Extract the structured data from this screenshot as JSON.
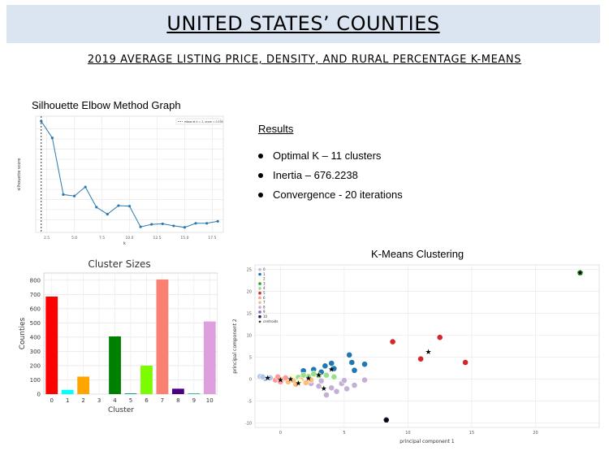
{
  "header": {
    "title": "UNITED STATES’ COUNTIES",
    "subtitle": "2019 AVERAGE LISTING PRICE, DENSITY, AND RURAL PERCENTAGE K-MEANS"
  },
  "results": {
    "heading": "Results",
    "items": [
      "Optimal K – 11 clusters",
      "Inertia –  676.2238",
      "Convergence - 20  iterations"
    ]
  },
  "panels": {
    "silhouette_title": "Silhouette Elbow Method Graph",
    "kmeans_title": "K-Means Clustering"
  },
  "chart_data": [
    {
      "type": "line",
      "title": "",
      "xlabel": "k",
      "ylabel": "silhouette score",
      "legend": "top-right",
      "legend_text": "elbow at k = 2, score = 0.535",
      "elbow_k": 2,
      "x": [
        2,
        3,
        4,
        5,
        6,
        7,
        8,
        9,
        10,
        11,
        12,
        13,
        14,
        15,
        16,
        17,
        18
      ],
      "values": [
        0.535,
        0.502,
        0.39,
        0.387,
        0.405,
        0.365,
        0.351,
        0.368,
        0.367,
        0.326,
        0.331,
        0.332,
        0.328,
        0.325,
        0.333,
        0.333,
        0.337
      ],
      "xticks": [
        "2.5",
        "5.0",
        "7.5",
        "10.0",
        "12.5",
        "15.0",
        "17.5"
      ],
      "grid": true,
      "color": "#2a7ab0"
    },
    {
      "type": "bar",
      "title": "Cluster Sizes",
      "xlabel": "Cluster",
      "ylabel": "Counties",
      "ylim": [
        0,
        850
      ],
      "yticks": [
        0,
        100,
        200,
        300,
        400,
        500,
        600,
        700,
        800
      ],
      "categories": [
        "0",
        "1",
        "2",
        "3",
        "4",
        "5",
        "6",
        "7",
        "8",
        "9",
        "10"
      ],
      "values": [
        685,
        30,
        123,
        0,
        405,
        5,
        200,
        805,
        38,
        5,
        510
      ],
      "colors": [
        "#ff0000",
        "#00ffff",
        "#ffa500",
        "#ffd700",
        "#008000",
        "#008b8b",
        "#7cfc00",
        "#fa8072",
        "#4b0082",
        "#20b2aa",
        "#dda0dd"
      ],
      "grid": true
    },
    {
      "type": "scatter",
      "title": "",
      "xlabel": "principal component 1",
      "ylabel": "principal component 2",
      "xlim": [
        -2,
        25
      ],
      "ylim": [
        -11,
        26
      ],
      "xticks": [
        "0",
        "5",
        "10",
        "15",
        "20"
      ],
      "yticks": [
        "-10",
        "-5",
        "0",
        "5",
        "10",
        "15",
        "20",
        "25"
      ],
      "legend": "top-left",
      "legend_entries": [
        "0",
        "1",
        "2",
        "3",
        "4",
        "5",
        "6",
        "7",
        "8",
        "9",
        "10",
        "centroids"
      ],
      "colors": [
        "#aec7e8",
        "#1f77b4",
        "#ffffcc",
        "#2ca02c",
        "#98df8a",
        "#d62728",
        "#ff9896",
        "#ffbb78",
        "#c5b0d5",
        "#9467bd",
        "#2e1a47"
      ],
      "points": [
        {
          "c": 1,
          "x": 5.4,
          "y": 5.5
        },
        {
          "c": 1,
          "x": 5.6,
          "y": 3.8
        },
        {
          "c": 1,
          "x": 6.6,
          "y": 3.4
        },
        {
          "c": 1,
          "x": 5.8,
          "y": 2.0
        },
        {
          "c": 1,
          "x": 4.2,
          "y": 2.4
        },
        {
          "c": 1,
          "x": 3.5,
          "y": 3.0
        },
        {
          "c": 1,
          "x": 3.2,
          "y": 1.6
        },
        {
          "c": 1,
          "x": 2.6,
          "y": 2.2
        },
        {
          "c": 1,
          "x": 1.8,
          "y": 1.9
        },
        {
          "c": 1,
          "x": 4.0,
          "y": 3.6
        },
        {
          "c": 5,
          "x": 8.8,
          "y": 8.5
        },
        {
          "c": 5,
          "x": 12.5,
          "y": 9.5
        },
        {
          "c": 5,
          "x": 11.0,
          "y": 4.6
        },
        {
          "c": 5,
          "x": 14.5,
          "y": 3.8
        },
        {
          "c": 3,
          "x": 23.5,
          "y": 24.2
        },
        {
          "c": 10,
          "x": 8.3,
          "y": -9.3
        },
        {
          "c": 8,
          "x": 6.6,
          "y": -0.2
        },
        {
          "c": 8,
          "x": 5.8,
          "y": -1.4
        },
        {
          "c": 8,
          "x": 4.8,
          "y": -1.0
        },
        {
          "c": 8,
          "x": 5.2,
          "y": -2.2
        },
        {
          "c": 8,
          "x": 4.0,
          "y": -2.0
        },
        {
          "c": 8,
          "x": 3.6,
          "y": -3.6
        },
        {
          "c": 8,
          "x": 4.4,
          "y": -2.8
        },
        {
          "c": 8,
          "x": 3.0,
          "y": -1.6
        },
        {
          "c": 8,
          "x": 2.4,
          "y": -1.0
        },
        {
          "c": 8,
          "x": 3.2,
          "y": -0.4
        },
        {
          "c": 8,
          "x": 5.0,
          "y": -0.3
        },
        {
          "c": 4,
          "x": 3.0,
          "y": 0.8
        },
        {
          "c": 4,
          "x": 2.2,
          "y": 0.6
        },
        {
          "c": 4,
          "x": 1.4,
          "y": 0.4
        },
        {
          "c": 4,
          "x": 3.6,
          "y": 0.9
        },
        {
          "c": 4,
          "x": 2.6,
          "y": 1.2
        },
        {
          "c": 4,
          "x": 1.8,
          "y": 0.9
        },
        {
          "c": 4,
          "x": 4.2,
          "y": 0.5
        },
        {
          "c": 7,
          "x": 0.6,
          "y": -0.6
        },
        {
          "c": 7,
          "x": 1.2,
          "y": -1.2
        },
        {
          "c": 7,
          "x": 2.0,
          "y": -0.8
        },
        {
          "c": 7,
          "x": 1.6,
          "y": -0.2
        },
        {
          "c": 7,
          "x": 0.2,
          "y": 0.0
        },
        {
          "c": 7,
          "x": 2.4,
          "y": -0.2
        },
        {
          "c": 7,
          "x": 1.0,
          "y": -0.3
        },
        {
          "c": 6,
          "x": -0.4,
          "y": -0.2
        },
        {
          "c": 6,
          "x": 0.0,
          "y": -0.6
        },
        {
          "c": 6,
          "x": 0.4,
          "y": 0.3
        },
        {
          "c": 6,
          "x": -0.2,
          "y": 0.5
        },
        {
          "c": 2,
          "x": 0.9,
          "y": 0.6
        },
        {
          "c": 2,
          "x": 1.5,
          "y": -0.6
        },
        {
          "c": 0,
          "x": -1.6,
          "y": 0.6
        },
        {
          "c": 0,
          "x": -1.2,
          "y": 0.1
        },
        {
          "c": 0,
          "x": -0.8,
          "y": 0.3
        },
        {
          "c": 0,
          "x": -1.4,
          "y": 0.5
        }
      ],
      "centroids": [
        {
          "x": -1.0,
          "y": 0.3
        },
        {
          "x": 0.0,
          "y": -0.2
        },
        {
          "x": 0.8,
          "y": 0.0
        },
        {
          "x": 1.4,
          "y": -0.9
        },
        {
          "x": 2.2,
          "y": 0.2
        },
        {
          "x": 3.0,
          "y": 0.9
        },
        {
          "x": 3.4,
          "y": -2.1
        },
        {
          "x": 11.6,
          "y": 6.2
        },
        {
          "x": 23.5,
          "y": 24.2
        },
        {
          "x": 8.3,
          "y": -9.3
        },
        {
          "x": 4.0,
          "y": 2.2
        }
      ]
    }
  ]
}
